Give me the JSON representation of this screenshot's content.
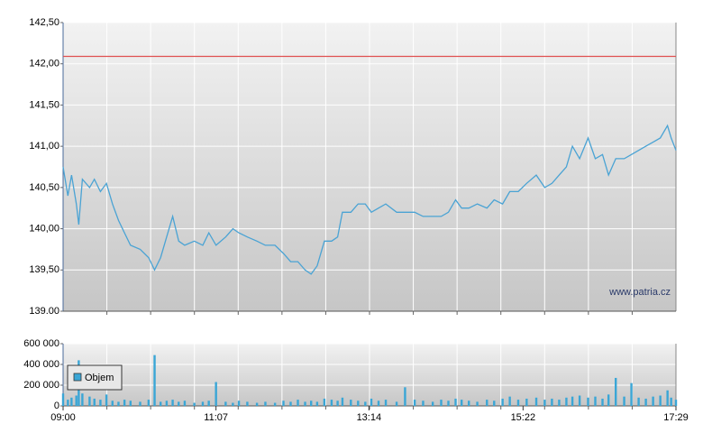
{
  "chart_data": [
    {
      "type": "line",
      "x": [
        "09:00",
        "09:04",
        "09:07",
        "09:11",
        "09:13",
        "09:16",
        "09:22",
        "09:26",
        "09:31",
        "09:36",
        "09:41",
        "09:46",
        "09:51",
        "09:56",
        "10:04",
        "10:11",
        "10:16",
        "10:21",
        "10:26",
        "10:31",
        "10:36",
        "10:41",
        "10:49",
        "10:56",
        "11:01",
        "11:07",
        "11:15",
        "11:21",
        "11:26",
        "11:33",
        "11:41",
        "11:48",
        "11:56",
        "12:03",
        "12:09",
        "12:15",
        "12:21",
        "12:26",
        "12:31",
        "12:37",
        "12:43",
        "12:48",
        "12:52",
        "12:59",
        "13:05",
        "13:11",
        "13:16",
        "13:22",
        "13:28",
        "13:37",
        "13:44",
        "13:52",
        "13:59",
        "14:07",
        "14:14",
        "14:20",
        "14:26",
        "14:31",
        "14:37",
        "14:44",
        "14:52",
        "14:58",
        "15:05",
        "15:11",
        "15:18",
        "15:25",
        "15:33",
        "15:40",
        "15:46",
        "15:52",
        "15:58",
        "16:03",
        "16:09",
        "16:16",
        "16:22",
        "16:28",
        "16:33",
        "16:39",
        "16:46",
        "16:52",
        "16:58",
        "17:04",
        "17:10",
        "17:16",
        "17:22",
        "17:25",
        "17:29"
      ],
      "values": [
        140.75,
        140.4,
        140.65,
        140.3,
        140.05,
        140.6,
        140.5,
        140.6,
        140.45,
        140.55,
        140.3,
        140.1,
        139.95,
        139.8,
        139.75,
        139.65,
        139.5,
        139.65,
        139.9,
        140.15,
        139.85,
        139.8,
        139.85,
        139.8,
        139.95,
        139.8,
        139.9,
        140,
        139.95,
        139.9,
        139.85,
        139.8,
        139.8,
        139.7,
        139.6,
        139.6,
        139.5,
        139.45,
        139.55,
        139.85,
        139.85,
        139.9,
        140.2,
        140.2,
        140.3,
        140.3,
        140.2,
        140.25,
        140.3,
        140.2,
        140.2,
        140.2,
        140.15,
        140.15,
        140.15,
        140.2,
        140.35,
        140.25,
        140.25,
        140.3,
        140.25,
        140.35,
        140.3,
        140.45,
        140.45,
        140.55,
        140.65,
        140.5,
        140.55,
        140.65,
        140.75,
        141,
        140.85,
        141.1,
        140.85,
        140.9,
        140.65,
        140.85,
        140.85,
        140.9,
        140.95,
        141,
        141.05,
        141.1,
        141.25,
        141.1,
        140.95
      ],
      "color": "#4aa3d4",
      "xlim": [
        "09:00",
        "17:29"
      ],
      "ylim": [
        139,
        142.5
      ],
      "yticks": [
        {
          "value": 139,
          "label": "139.00"
        },
        {
          "value": 139.5,
          "label": "139,50"
        },
        {
          "value": 140,
          "label": "140,00"
        },
        {
          "value": 140.5,
          "label": "140,50"
        },
        {
          "value": 141,
          "label": "141,00"
        },
        {
          "value": 141.5,
          "label": "141,50"
        },
        {
          "value": 142,
          "label": "142,00"
        },
        {
          "value": 142.5,
          "label": "142,50"
        }
      ],
      "reference_line": {
        "value": 142.09,
        "color": "#e05050"
      },
      "grid": true,
      "annotation": "www.patria.cz"
    },
    {
      "type": "bar",
      "x": [
        "09:00",
        "09:04",
        "09:07",
        "09:11",
        "09:13",
        "09:16",
        "09:22",
        "09:26",
        "09:31",
        "09:36",
        "09:41",
        "09:46",
        "09:51",
        "09:56",
        "10:04",
        "10:11",
        "10:16",
        "10:21",
        "10:26",
        "10:31",
        "10:36",
        "10:41",
        "10:49",
        "10:56",
        "11:01",
        "11:07",
        "11:15",
        "11:21",
        "11:26",
        "11:33",
        "11:41",
        "11:48",
        "11:56",
        "12:03",
        "12:09",
        "12:15",
        "12:21",
        "12:26",
        "12:31",
        "12:37",
        "12:43",
        "12:48",
        "12:52",
        "12:59",
        "13:05",
        "13:11",
        "13:16",
        "13:22",
        "13:28",
        "13:37",
        "13:44",
        "13:52",
        "13:59",
        "14:07",
        "14:14",
        "14:20",
        "14:26",
        "14:31",
        "14:37",
        "14:44",
        "14:52",
        "14:58",
        "15:05",
        "15:11",
        "15:18",
        "15:25",
        "15:33",
        "15:40",
        "15:46",
        "15:52",
        "15:58",
        "16:03",
        "16:09",
        "16:16",
        "16:22",
        "16:28",
        "16:33",
        "16:39",
        "16:46",
        "16:52",
        "16:58",
        "17:04",
        "17:10",
        "17:16",
        "17:22",
        "17:25",
        "17:29"
      ],
      "series": [
        {
          "name": "Objem",
          "color": "#3aa6d6",
          "values": [
            120000,
            60000,
            80000,
            100000,
            440000,
            120000,
            90000,
            70000,
            60000,
            110000,
            50000,
            40000,
            60000,
            50000,
            40000,
            60000,
            490000,
            40000,
            50000,
            60000,
            40000,
            50000,
            30000,
            40000,
            50000,
            230000,
            40000,
            30000,
            50000,
            40000,
            30000,
            40000,
            30000,
            50000,
            40000,
            60000,
            40000,
            50000,
            40000,
            70000,
            60000,
            50000,
            80000,
            60000,
            50000,
            40000,
            70000,
            50000,
            60000,
            40000,
            180000,
            60000,
            50000,
            40000,
            60000,
            50000,
            70000,
            60000,
            50000,
            40000,
            60000,
            50000,
            70000,
            90000,
            60000,
            70000,
            80000,
            60000,
            70000,
            60000,
            80000,
            90000,
            100000,
            80000,
            90000,
            70000,
            110000,
            270000,
            90000,
            220000,
            80000,
            70000,
            90000,
            100000,
            150000,
            80000,
            60000
          ]
        }
      ],
      "xlim": [
        "09:00",
        "17:29"
      ],
      "xticks": [
        "09:00",
        "11:07",
        "13:14",
        "15:22",
        "17:29"
      ],
      "ylim": [
        0,
        600000
      ],
      "yticks": [
        {
          "value": 0,
          "label": "0"
        },
        {
          "value": 200000,
          "label": "200 000"
        },
        {
          "value": 400000,
          "label": "400 000"
        },
        {
          "value": 600000,
          "label": "600 000"
        }
      ],
      "grid": true,
      "legend": "upper left"
    }
  ]
}
